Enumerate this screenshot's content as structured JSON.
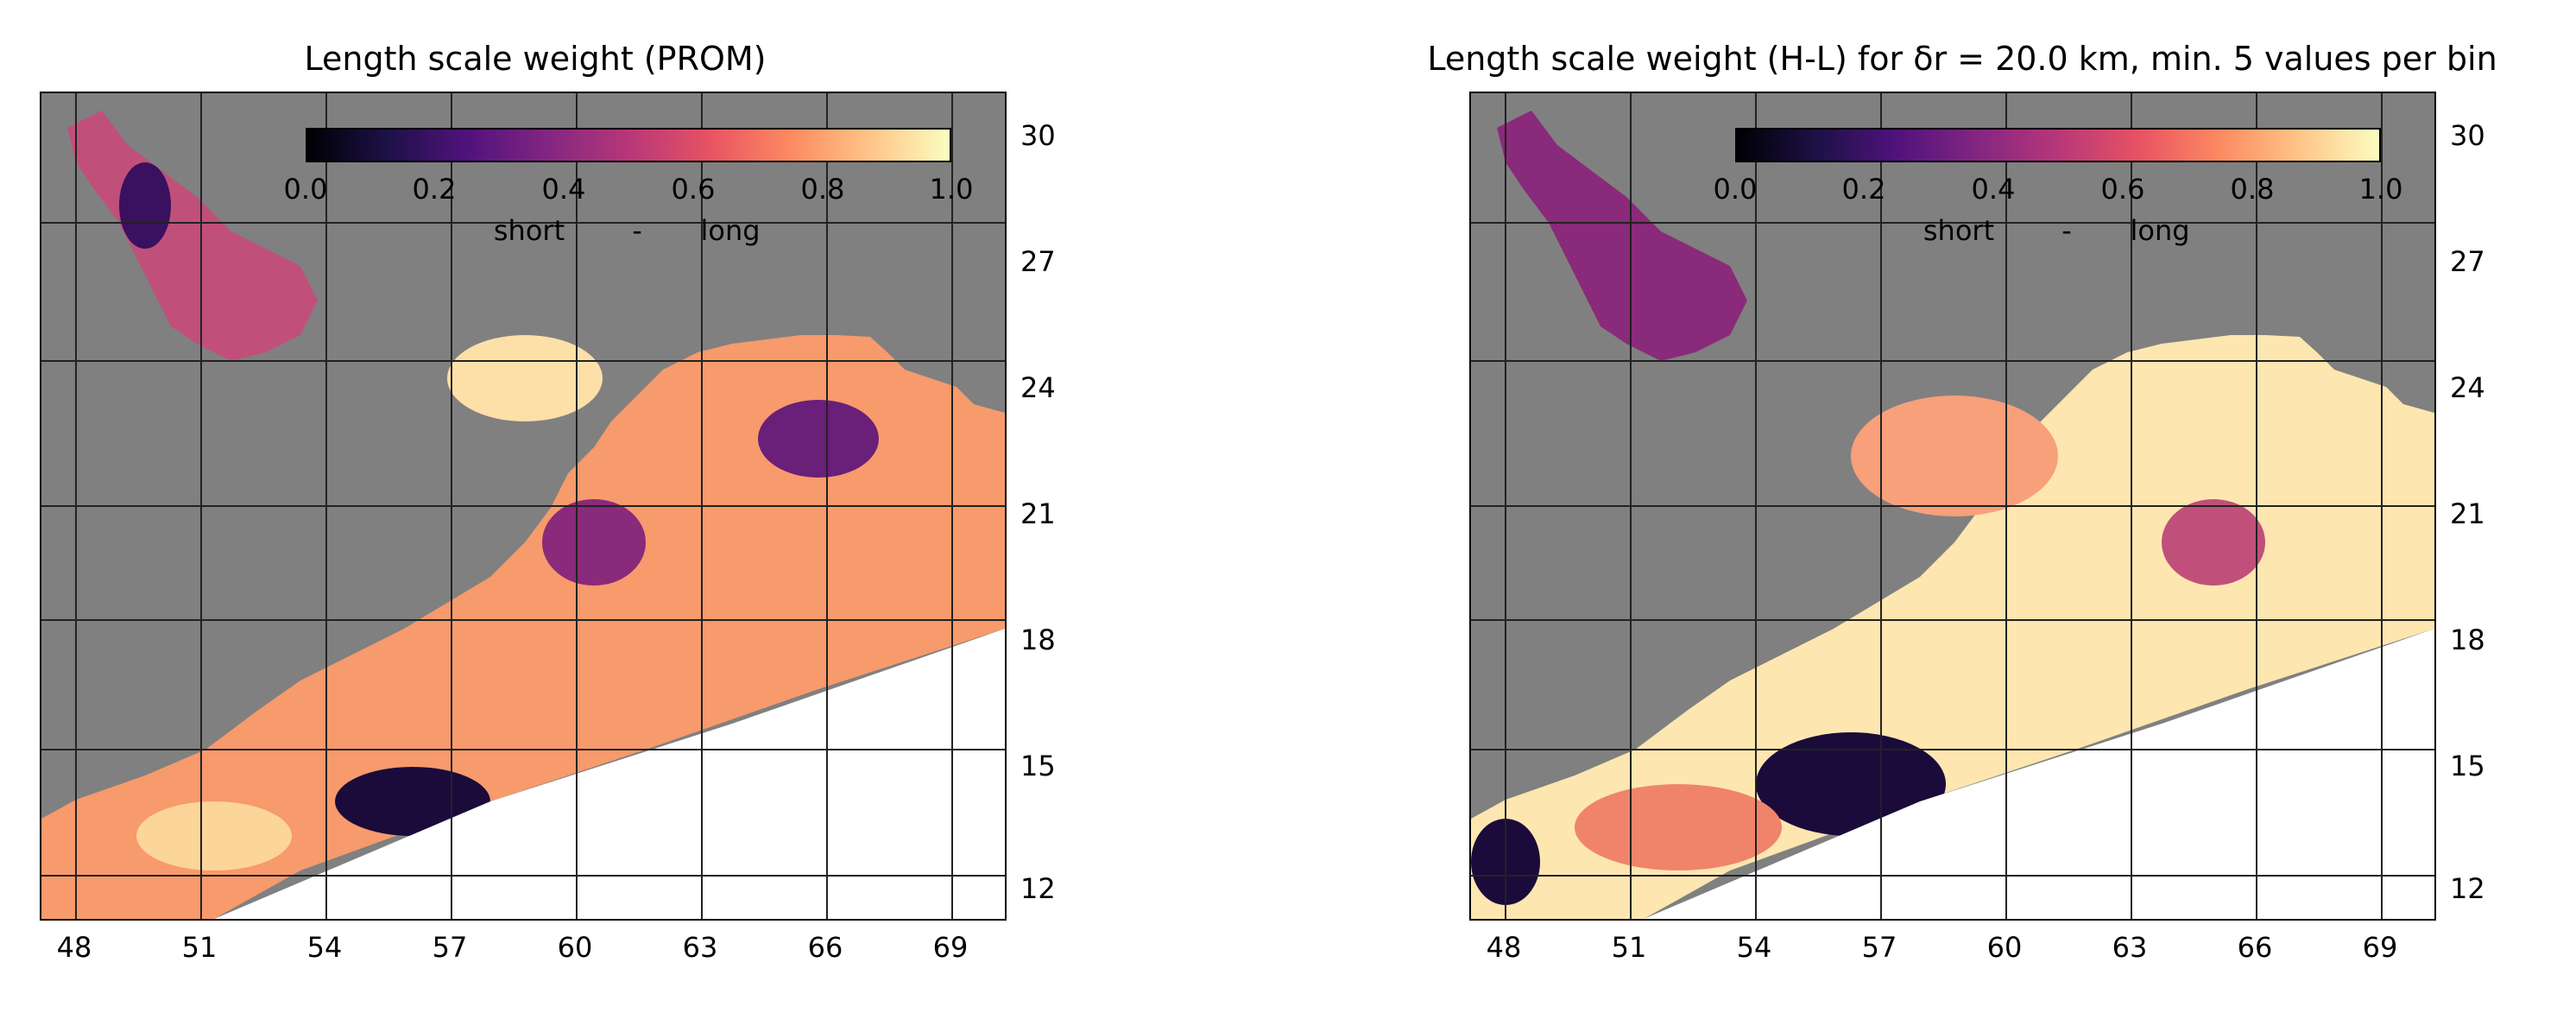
{
  "panels": [
    {
      "title": "Length scale weight (PROM)",
      "colorbar": {
        "ticks": [
          "0.0",
          "0.2",
          "0.4",
          "0.6",
          "0.8",
          "1.0"
        ],
        "label_left": "short",
        "label_mid": "-",
        "label_right": "long"
      },
      "lat_ticks": [
        "30",
        "27",
        "24",
        "21",
        "18",
        "15",
        "12"
      ],
      "lon_ticks": [
        "48",
        "51",
        "54",
        "57",
        "60",
        "63",
        "66",
        "69"
      ],
      "dominant_weight": 0.65
    },
    {
      "title": "Length scale weight (H-L) for δr = 20.0 km, min. 5 values per bin",
      "colorbar": {
        "ticks": [
          "0.0",
          "0.2",
          "0.4",
          "0.6",
          "0.8",
          "1.0"
        ],
        "label_left": "short",
        "label_mid": "-",
        "label_right": "long"
      },
      "lat_ticks": [
        "30",
        "27",
        "24",
        "21",
        "18",
        "15",
        "12"
      ],
      "lon_ticks": [
        "48",
        "51",
        "54",
        "57",
        "60",
        "63",
        "66",
        "69"
      ],
      "dominant_weight": 0.8
    }
  ],
  "colors": {
    "land": "#808080",
    "colormap": "magma",
    "cmap_low": "#000004",
    "cmap_mid": "#b73779",
    "cmap_high": "#fcfdbf"
  }
}
